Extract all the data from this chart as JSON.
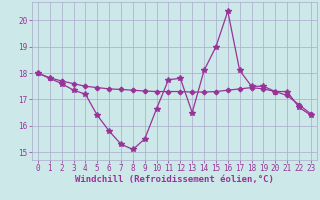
{
  "xlabel": "Windchill (Refroidissement éolien,°C)",
  "bg_color": "#cce8e8",
  "grid_color": "#aaaacc",
  "line_color": "#993399",
  "x": [
    0,
    1,
    2,
    3,
    4,
    5,
    6,
    7,
    8,
    9,
    10,
    11,
    12,
    13,
    14,
    15,
    16,
    17,
    18,
    19,
    20,
    21,
    22,
    23
  ],
  "y_main": [
    18.0,
    17.8,
    17.6,
    17.35,
    17.2,
    16.4,
    15.8,
    15.3,
    15.1,
    15.5,
    16.65,
    17.75,
    17.8,
    16.5,
    18.1,
    19.0,
    20.35,
    18.1,
    17.5,
    17.5,
    17.3,
    17.3,
    16.7,
    16.4
  ],
  "y_smooth": [
    18.0,
    17.82,
    17.7,
    17.6,
    17.5,
    17.45,
    17.4,
    17.38,
    17.35,
    17.32,
    17.3,
    17.3,
    17.3,
    17.28,
    17.28,
    17.3,
    17.35,
    17.4,
    17.45,
    17.4,
    17.3,
    17.15,
    16.8,
    16.45
  ],
  "xlim": [
    -0.5,
    23.5
  ],
  "ylim": [
    14.7,
    20.7
  ],
  "yticks": [
    15,
    16,
    17,
    18,
    19,
    20
  ],
  "xticks": [
    0,
    1,
    2,
    3,
    4,
    5,
    6,
    7,
    8,
    9,
    10,
    11,
    12,
    13,
    14,
    15,
    16,
    17,
    18,
    19,
    20,
    21,
    22,
    23
  ],
  "tick_fontsize": 5.5,
  "xlabel_fontsize": 6.5,
  "markersize": 2.8,
  "linewidth": 0.9
}
